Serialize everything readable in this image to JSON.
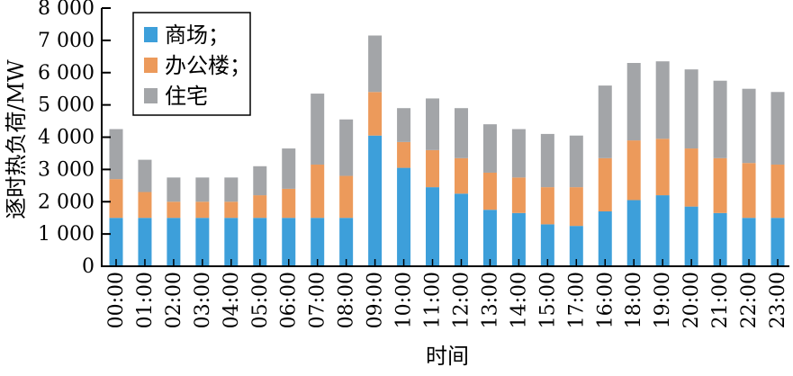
{
  "chart_data": {
    "type": "bar",
    "stacked": true,
    "title": "",
    "xlabel": "时间",
    "ylabel": "逐时热负荷/MW",
    "ylim": [
      0,
      8000
    ],
    "yticks": [
      0,
      1000,
      2000,
      3000,
      4000,
      5000,
      6000,
      7000,
      8000
    ],
    "ytick_labels": [
      "0",
      "1 000",
      "2 000",
      "3 000",
      "4 000",
      "5 000",
      "6 000",
      "7 000",
      "8 000"
    ],
    "categories": [
      "00:00",
      "01:00",
      "02:00",
      "03:00",
      "04:00",
      "05:00",
      "06:00",
      "07:00",
      "08:00",
      "09:00",
      "10:00",
      "11:00",
      "12:00",
      "13:00",
      "14:00",
      "15:00",
      "17:00",
      "16:00",
      "18:00",
      "19:00",
      "20:00",
      "21:00",
      "22:00",
      "23:00"
    ],
    "series": [
      {
        "name": "商场；",
        "color": "#3d9fda",
        "values": [
          1500,
          1500,
          1500,
          1500,
          1500,
          1500,
          1500,
          1500,
          1500,
          4050,
          3050,
          2450,
          2250,
          1750,
          1650,
          1300,
          1250,
          1700,
          2050,
          2200,
          1850,
          1650,
          1500,
          1500
        ]
      },
      {
        "name": "办公楼；",
        "color": "#ec9a5b",
        "values": [
          1200,
          800,
          500,
          500,
          500,
          700,
          900,
          1650,
          1300,
          1350,
          800,
          1150,
          1100,
          1150,
          1100,
          1150,
          1200,
          1650,
          1850,
          1750,
          1800,
          1700,
          1700,
          1650
        ]
      },
      {
        "name": "住宅",
        "color": "#a3a5a8",
        "values": [
          1550,
          1000,
          750,
          750,
          750,
          900,
          1250,
          2200,
          1750,
          1750,
          1050,
          1600,
          1550,
          1500,
          1500,
          1650,
          1600,
          2250,
          2400,
          2400,
          2450,
          2400,
          2300,
          2250
        ]
      }
    ],
    "legend_position": "top-left",
    "grid": false
  }
}
